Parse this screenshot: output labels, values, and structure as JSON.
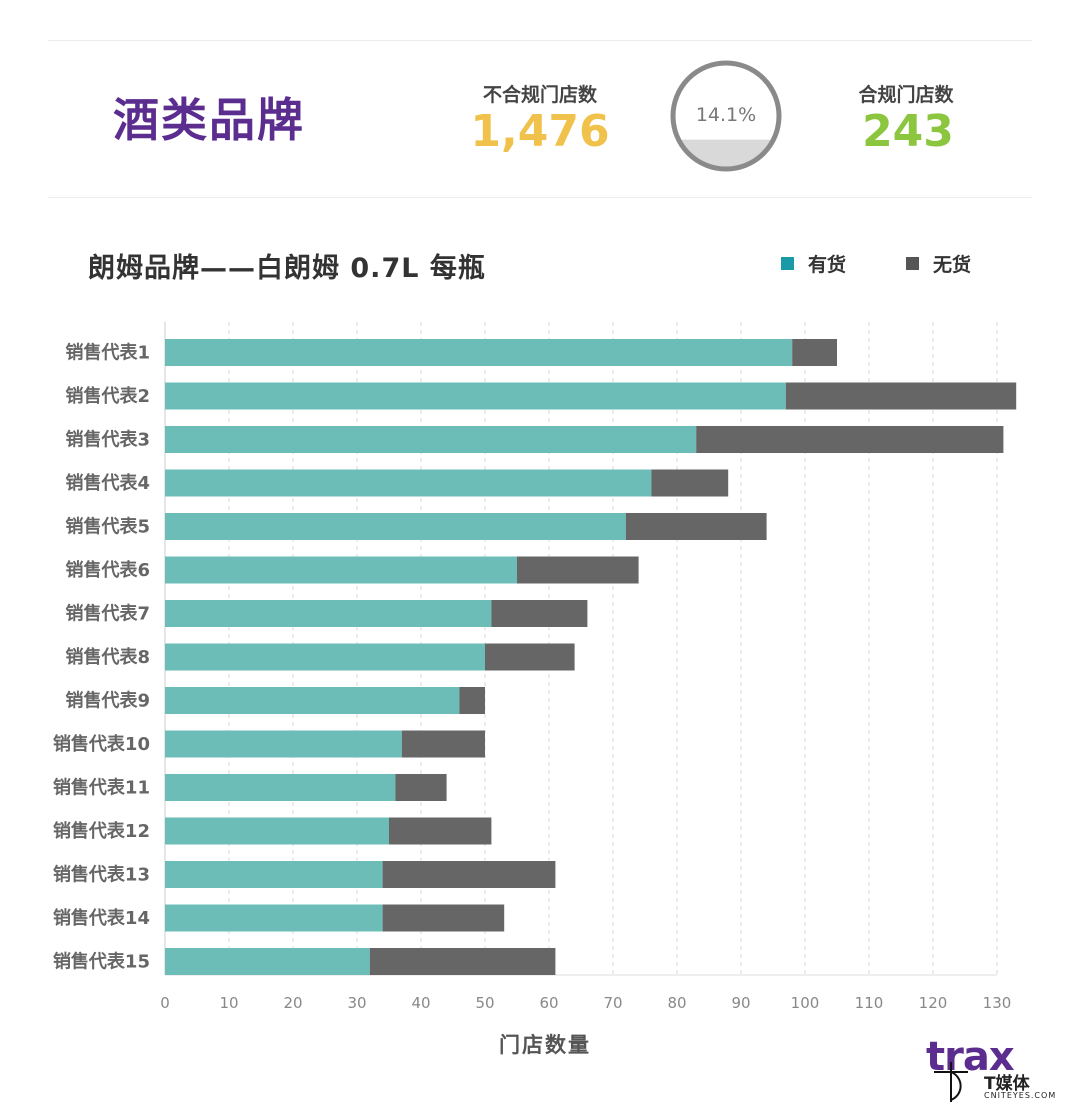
{
  "header": {
    "brand_title": "酒类品牌",
    "noncompliant_label": "不合规门店数",
    "noncompliant_value": "1,476",
    "compliant_label": "合规门店数",
    "compliant_value": "243",
    "gauge_text": "14.1%",
    "gauge_fraction": 0.141
  },
  "legend": {
    "in_stock": "有货",
    "out_of_stock": "无货"
  },
  "colors": {
    "in_stock": "#6cbcb8",
    "out_of_stock": "#666666",
    "legend_in_stock": "#1a9aa6",
    "title_purple": "#5b2d8e",
    "noncompliant": "#f0c24b",
    "compliant": "#8cc63f"
  },
  "chart_data": {
    "type": "bar",
    "orientation": "horizontal",
    "stacked": true,
    "title": "朗姆品牌——白朗姆 0.7L 每瓶",
    "xlabel": "门店数量",
    "ylabel": "",
    "xlim": [
      0,
      130
    ],
    "xticks": [
      0,
      10,
      20,
      30,
      40,
      50,
      60,
      70,
      80,
      90,
      100,
      110,
      120,
      130
    ],
    "grid": "vertical dashed",
    "legend_position": "top-right",
    "categories": [
      "销售代表1",
      "销售代表2",
      "销售代表3",
      "销售代表4",
      "销售代表5",
      "销售代表6",
      "销售代表7",
      "销售代表8",
      "销售代表9",
      "销售代表10",
      "销售代表11",
      "销售代表12",
      "销售代表13",
      "销售代表14",
      "销售代表15"
    ],
    "series": [
      {
        "name": "有货",
        "values": [
          98,
          97,
          83,
          76,
          72,
          55,
          51,
          50,
          46,
          37,
          36,
          35,
          34,
          34,
          32
        ]
      },
      {
        "name": "无货",
        "values": [
          7,
          36,
          48,
          12,
          22,
          19,
          15,
          14,
          4,
          13,
          8,
          16,
          27,
          19,
          29
        ]
      }
    ]
  },
  "watermark": {
    "logo": "trax",
    "media_name": "T媒体",
    "media_site": "CNITEYES.COM"
  }
}
